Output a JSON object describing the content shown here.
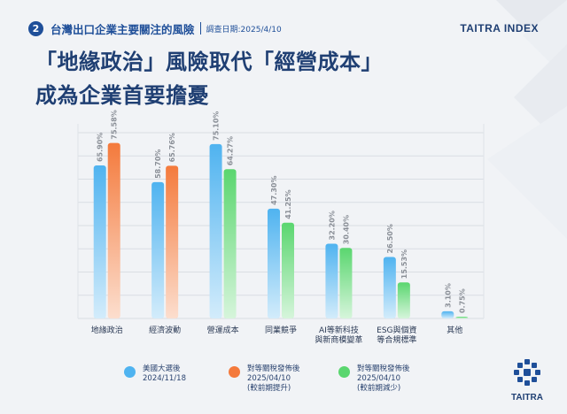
{
  "header": {
    "section_number": "2",
    "subtitle": "台灣出口企業主要關注的風險",
    "survey_date": "調查日期:2025/4/10",
    "brand": "TAITRA INDEX"
  },
  "title": {
    "line1": "「地緣政治」風險取代「經營成本」",
    "line2": "成為企業首要擔憂"
  },
  "logo": {
    "word": "TAITRA"
  },
  "colors": {
    "blue": "#4fb3f0",
    "orange": "#f47a3c",
    "green": "#5ad66f"
  },
  "legend": [
    {
      "lines": [
        "美國大選後",
        "2024/11/18"
      ],
      "color": "#4fb3f0"
    },
    {
      "lines": [
        "對等關稅發佈後",
        "2025/04/10",
        "(較前期提升)"
      ],
      "color": "#f47a3c"
    },
    {
      "lines": [
        "對等關稅發佈後",
        "2025/04/10",
        "(較前期減少)"
      ],
      "color": "#5ad66f"
    }
  ],
  "chart_data": {
    "type": "bar",
    "categories": [
      [
        "地緣政治"
      ],
      [
        "經濟波動"
      ],
      [
        "營運成本"
      ],
      [
        "同業競爭"
      ],
      [
        "AI等新科技",
        "與新商模變革"
      ],
      [
        "ESG與個資",
        "等合規標準"
      ],
      [
        "其他"
      ]
    ],
    "ylim": [
      0,
      100
    ],
    "grid": true,
    "legend_position": "bottom",
    "series": [
      {
        "name": "美國大選後 2024/11/18",
        "values": [
          65.9,
          58.7,
          75.1,
          47.3,
          32.2,
          26.5,
          3.1
        ],
        "labels": [
          "65.90%",
          "58.70%",
          "75.10%",
          "47.30%",
          "32.20%",
          "26.50%",
          "3.10%"
        ]
      },
      {
        "name": "對等關稅發佈後 2025/04/10",
        "values": [
          75.58,
          65.76,
          64.27,
          41.25,
          30.4,
          15.53,
          0.75
        ],
        "labels": [
          "75.58%",
          "65.76%",
          "64.27%",
          "41.25%",
          "30.40%",
          "15.53%",
          "0.75%"
        ],
        "change": [
          "up",
          "up",
          "down",
          "down",
          "down",
          "down",
          "down"
        ]
      }
    ]
  }
}
